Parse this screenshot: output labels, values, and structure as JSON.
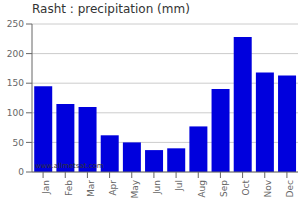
{
  "chart_data": {
    "type": "bar",
    "title": "Rasht : precipitation (mm)",
    "categories": [
      "Jan",
      "Feb",
      "Mar",
      "Apr",
      "May",
      "Jun",
      "Jul",
      "Aug",
      "Sep",
      "Oct",
      "Nov",
      "Dec"
    ],
    "values": [
      145,
      115,
      110,
      62,
      50,
      37,
      40,
      77,
      140,
      228,
      168,
      163
    ],
    "color": "#0000dd",
    "ylim": [
      0,
      250
    ],
    "yticks": [
      0,
      50,
      100,
      150,
      200,
      250
    ],
    "grid": true,
    "annotations": [
      "www.allmetsat.com"
    ]
  }
}
